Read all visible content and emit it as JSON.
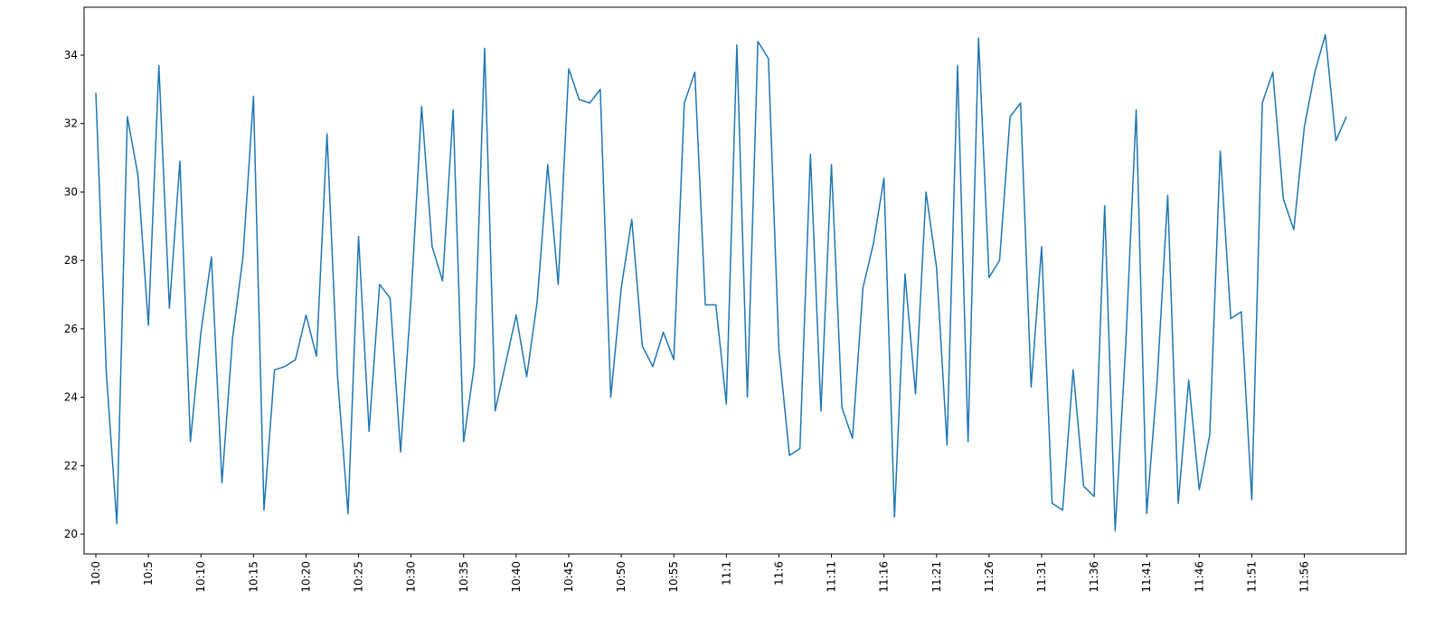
{
  "chart_data": {
    "type": "line",
    "categories": [
      "10:0",
      null,
      null,
      null,
      null,
      "10:5",
      null,
      null,
      null,
      null,
      "10:10",
      null,
      null,
      null,
      null,
      "10:15",
      null,
      null,
      null,
      null,
      "10:20",
      null,
      null,
      null,
      null,
      "10:25",
      null,
      null,
      null,
      null,
      "10:30",
      null,
      null,
      null,
      null,
      "10:35",
      null,
      null,
      null,
      null,
      "10:40",
      null,
      null,
      null,
      null,
      "10:45",
      null,
      null,
      null,
      null,
      "10:50",
      null,
      null,
      null,
      null,
      "10:55",
      null,
      null,
      null,
      null,
      "11:1",
      null,
      null,
      null,
      null,
      "11:6",
      null,
      null,
      null,
      null,
      "11:11",
      null,
      null,
      null,
      null,
      "11:16",
      null,
      null,
      null,
      null,
      "11:21",
      null,
      null,
      null,
      null,
      "11:26",
      null,
      null,
      null,
      null,
      "11:31",
      null,
      null,
      null,
      null,
      "11:36",
      null,
      null,
      null,
      null,
      "11:41",
      null,
      null,
      null,
      null,
      "11:46",
      null,
      null,
      null,
      null,
      "11:51",
      null,
      null,
      null,
      null,
      "11:56",
      null,
      null,
      null,
      null
    ],
    "values": [
      32.9,
      24.7,
      20.3,
      32.2,
      30.5,
      26.1,
      33.7,
      26.6,
      30.9,
      22.7,
      25.9,
      28.1,
      21.5,
      25.7,
      28.1,
      32.8,
      20.7,
      24.8,
      24.9,
      25.1,
      26.4,
      25.2,
      31.7,
      24.6,
      20.6,
      28.7,
      23.0,
      27.3,
      26.9,
      22.4,
      26.9,
      32.5,
      28.4,
      27.4,
      32.4,
      22.7,
      24.9,
      34.2,
      23.6,
      25.0,
      26.4,
      24.6,
      26.8,
      30.8,
      27.3,
      33.6,
      32.7,
      32.6,
      33.0,
      24.0,
      27.2,
      29.2,
      25.5,
      24.9,
      25.9,
      25.1,
      32.6,
      33.5,
      26.7,
      26.7,
      23.8,
      34.3,
      24.0,
      34.4,
      33.9,
      25.4,
      22.3,
      22.5,
      31.1,
      23.6,
      30.8,
      23.7,
      22.8,
      27.2,
      28.5,
      30.4,
      20.5,
      27.6,
      24.1,
      30.0,
      27.8,
      22.6,
      33.7,
      22.7,
      34.5,
      27.5,
      28.0,
      32.2,
      32.6,
      24.3,
      28.4,
      20.9,
      20.7,
      24.8,
      21.4,
      21.1,
      29.6,
      20.1,
      25.5,
      32.4,
      20.6,
      24.5,
      29.9,
      20.9,
      24.5,
      21.3,
      22.9,
      31.2,
      26.3,
      26.5,
      21.0,
      32.6,
      33.5,
      29.8,
      28.9,
      31.9,
      33.5,
      34.6,
      31.5,
      32.2
    ],
    "color": "#1f77b4",
    "ylim": [
      19.42,
      35.4
    ],
    "yticks": [
      20,
      22,
      24,
      26,
      28,
      30,
      32,
      34
    ],
    "grid": false
  }
}
